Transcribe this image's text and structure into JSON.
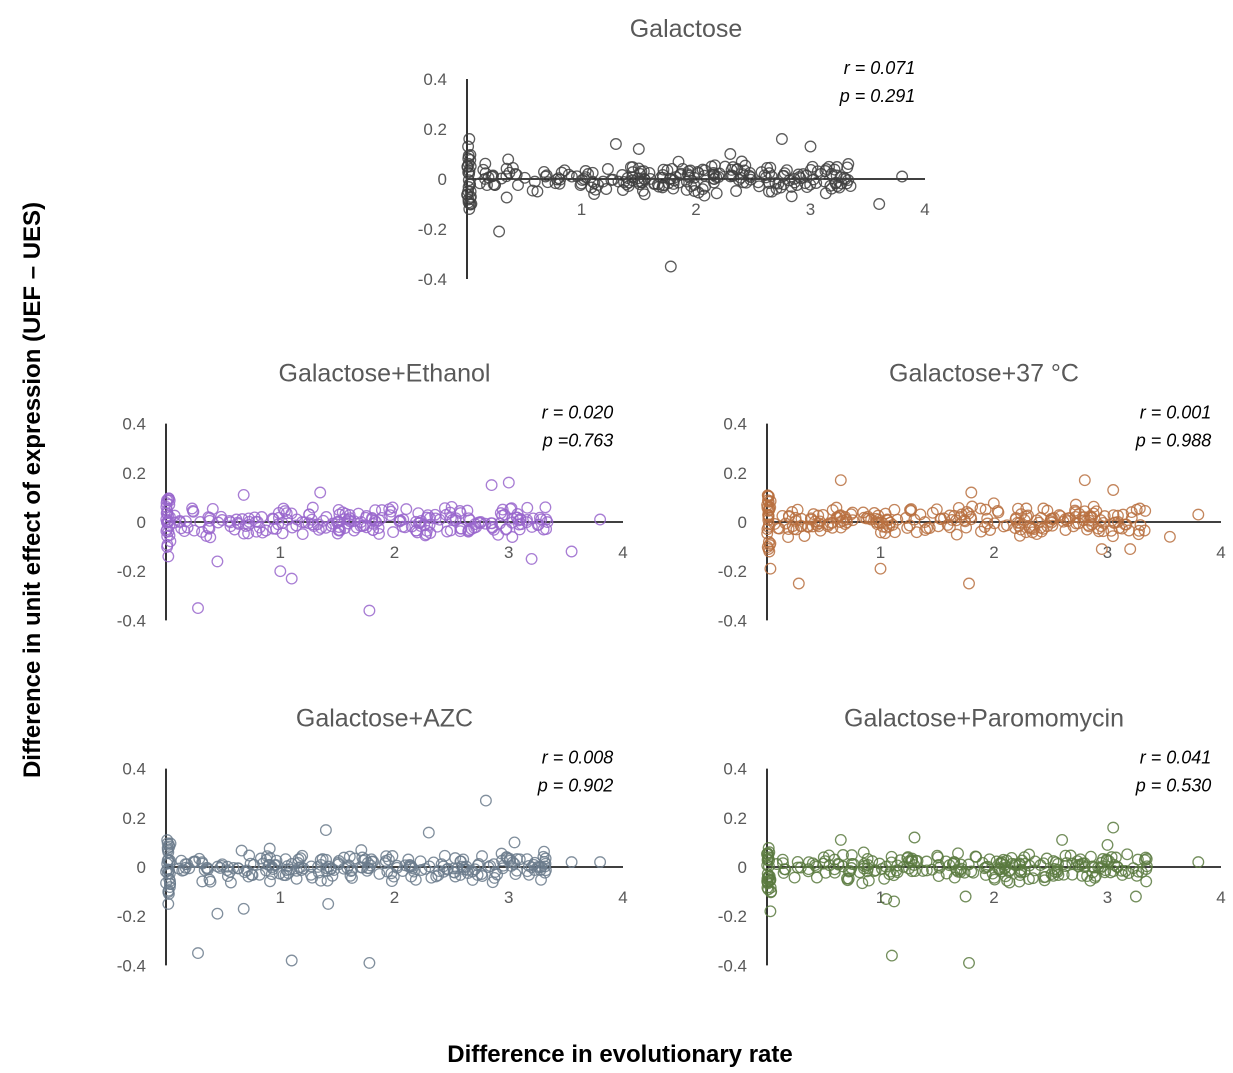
{
  "y_axis_title": "Difference in unit effect of expression (UEF – UES)",
  "x_axis_title": "Difference in evolutionary rate",
  "chart_data": [
    {
      "type": "scatter",
      "title": "Galactose",
      "color": "#404040",
      "xlim": [
        0,
        4
      ],
      "ylim": [
        -0.4,
        0.4
      ],
      "x_ticks": [
        "1",
        "2",
        "3",
        "4"
      ],
      "y_ticks": [
        "0.4",
        "0.2",
        "0",
        "-0.2",
        "-0.4"
      ],
      "stats": {
        "r": "r = 0.071",
        "p": "p = 0.291"
      },
      "outliers": [
        [
          0.28,
          -0.21
        ],
        [
          1.78,
          -0.35
        ],
        [
          3.6,
          -0.1
        ],
        [
          2.75,
          0.16
        ],
        [
          1.3,
          0.14
        ],
        [
          3.0,
          0.13
        ],
        [
          2.3,
          0.1
        ],
        [
          3.33,
          0.06
        ],
        [
          3.8,
          0.01
        ],
        [
          0.02,
          0.16
        ],
        [
          0.01,
          0.13
        ],
        [
          0.02,
          -0.12
        ],
        [
          1.5,
          0.12
        ],
        [
          2.4,
          0.07
        ]
      ],
      "seed": 11
    },
    {
      "type": "scatter",
      "title": "Galactose+Ethanol",
      "color": "#9966cc",
      "xlim": [
        0,
        4
      ],
      "ylim": [
        -0.4,
        0.4
      ],
      "x_ticks": [
        "1",
        "2",
        "3",
        "4"
      ],
      "y_ticks": [
        "0.4",
        "0.2",
        "0",
        "-0.2",
        "-0.4"
      ],
      "stats": {
        "r": "r = 0.020",
        "p": "p =0.763"
      },
      "outliers": [
        [
          0.28,
          -0.35
        ],
        [
          1.78,
          -0.36
        ],
        [
          1.0,
          -0.2
        ],
        [
          1.1,
          -0.23
        ],
        [
          0.45,
          -0.16
        ],
        [
          2.85,
          0.15
        ],
        [
          3.0,
          0.16
        ],
        [
          1.35,
          0.12
        ],
        [
          0.68,
          0.11
        ],
        [
          3.55,
          -0.12
        ],
        [
          3.2,
          -0.15
        ],
        [
          3.8,
          0.01
        ],
        [
          0.02,
          0.09
        ],
        [
          0.02,
          -0.14
        ]
      ],
      "seed": 23
    },
    {
      "type": "scatter",
      "title": "Galactose+37 °C",
      "color": "#b87040",
      "xlim": [
        0,
        4
      ],
      "ylim": [
        -0.4,
        0.4
      ],
      "x_ticks": [
        "1",
        "2",
        "3",
        "4"
      ],
      "y_ticks": [
        "0.4",
        "0.2",
        "0",
        "-0.2",
        "-0.4"
      ],
      "stats": {
        "r": "r = 0.001",
        "p": "p = 0.988"
      },
      "outliers": [
        [
          0.03,
          -0.19
        ],
        [
          0.28,
          -0.25
        ],
        [
          1.0,
          -0.19
        ],
        [
          1.78,
          -0.25
        ],
        [
          0.65,
          0.17
        ],
        [
          2.8,
          0.17
        ],
        [
          3.05,
          0.13
        ],
        [
          1.8,
          0.12
        ],
        [
          3.2,
          -0.11
        ],
        [
          3.55,
          -0.06
        ],
        [
          3.8,
          0.03
        ],
        [
          2.95,
          -0.11
        ],
        [
          0.02,
          0.05
        ],
        [
          0.02,
          -0.12
        ]
      ],
      "seed": 37
    },
    {
      "type": "scatter",
      "title": "Galactose+AZC",
      "color": "#6b7b8c",
      "xlim": [
        0,
        4
      ],
      "ylim": [
        -0.4,
        0.4
      ],
      "x_ticks": [
        "1",
        "2",
        "3",
        "4"
      ],
      "y_ticks": [
        "0.4",
        "0.2",
        "0",
        "-0.2",
        "-0.4"
      ],
      "stats": {
        "r": "r = 0.008",
        "p": "p = 0.902"
      },
      "outliers": [
        [
          0.28,
          -0.35
        ],
        [
          1.1,
          -0.38
        ],
        [
          1.78,
          -0.39
        ],
        [
          2.8,
          0.27
        ],
        [
          0.45,
          -0.19
        ],
        [
          0.68,
          -0.17
        ],
        [
          1.4,
          0.15
        ],
        [
          2.3,
          0.14
        ],
        [
          3.05,
          0.1
        ],
        [
          1.42,
          -0.15
        ],
        [
          3.8,
          0.02
        ],
        [
          3.55,
          0.02
        ],
        [
          0.02,
          0.06
        ],
        [
          0.02,
          -0.15
        ]
      ],
      "seed": 41
    },
    {
      "type": "scatter",
      "title": "Galactose+Paromomycin",
      "color": "#5a7a40",
      "xlim": [
        0,
        4
      ],
      "ylim": [
        -0.4,
        0.4
      ],
      "x_ticks": [
        "1",
        "2",
        "3",
        "4"
      ],
      "y_ticks": [
        "0.4",
        "0.2",
        "0",
        "-0.2",
        "-0.4"
      ],
      "stats": {
        "r": "r = 0.041",
        "p": "p = 0.530"
      },
      "outliers": [
        [
          1.1,
          -0.36
        ],
        [
          1.78,
          -0.39
        ],
        [
          1.05,
          -0.13
        ],
        [
          1.12,
          -0.14
        ],
        [
          3.05,
          0.16
        ],
        [
          1.3,
          0.12
        ],
        [
          0.65,
          0.11
        ],
        [
          3.0,
          0.09
        ],
        [
          3.25,
          -0.12
        ],
        [
          0.03,
          -0.18
        ],
        [
          3.8,
          0.02
        ],
        [
          2.6,
          0.11
        ],
        [
          0.02,
          0.06
        ],
        [
          1.75,
          -0.12
        ]
      ],
      "seed": 53
    }
  ]
}
